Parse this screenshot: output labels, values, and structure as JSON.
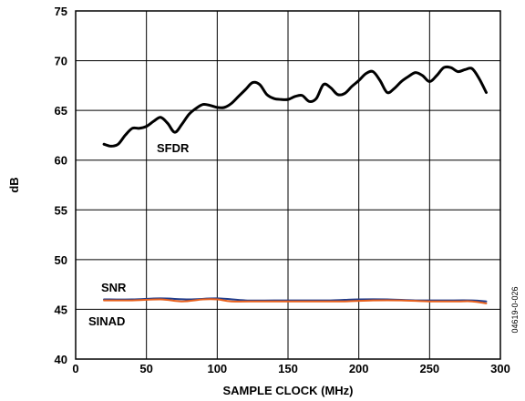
{
  "chart_data": {
    "type": "line",
    "xlabel": "SAMPLE CLOCK (MHz)",
    "ylabel": "dB",
    "xlim": [
      0,
      300
    ],
    "ylim": [
      40,
      75
    ],
    "xticks": [
      0,
      50,
      100,
      150,
      200,
      250,
      300
    ],
    "yticks": [
      40,
      45,
      50,
      55,
      60,
      65,
      70,
      75
    ],
    "grid": true,
    "figure_id": "04619-0-026",
    "series": [
      {
        "name": "SFDR",
        "color": "#000000",
        "x": [
          20,
          25,
          30,
          35,
          40,
          45,
          50,
          55,
          60,
          65,
          70,
          75,
          80,
          85,
          90,
          95,
          100,
          105,
          110,
          115,
          120,
          125,
          130,
          135,
          140,
          145,
          150,
          155,
          160,
          165,
          170,
          175,
          180,
          185,
          190,
          195,
          200,
          205,
          210,
          215,
          220,
          225,
          230,
          235,
          240,
          245,
          250,
          255,
          260,
          265,
          270,
          275,
          280,
          285,
          290
        ],
        "values": [
          61.6,
          61.4,
          61.6,
          62.5,
          63.2,
          63.2,
          63.4,
          63.9,
          64.3,
          63.7,
          62.8,
          63.6,
          64.6,
          65.2,
          65.6,
          65.5,
          65.3,
          65.3,
          65.7,
          66.4,
          67.1,
          67.8,
          67.6,
          66.6,
          66.2,
          66.1,
          66.1,
          66.4,
          66.5,
          65.9,
          66.2,
          67.6,
          67.3,
          66.6,
          66.7,
          67.4,
          68.0,
          68.7,
          68.9,
          68.0,
          66.8,
          67.2,
          67.9,
          68.4,
          68.8,
          68.5,
          67.9,
          68.5,
          69.3,
          69.3,
          68.9,
          69.1,
          69.2,
          68.2,
          66.8
        ]
      },
      {
        "name": "SNR",
        "color": "#1f3c8c",
        "x": [
          20,
          40,
          60,
          80,
          100,
          120,
          140,
          160,
          180,
          200,
          220,
          240,
          260,
          280,
          290
        ],
        "values": [
          46.0,
          46.0,
          46.1,
          46.0,
          46.1,
          45.9,
          45.9,
          45.9,
          45.9,
          46.0,
          46.0,
          45.9,
          45.9,
          45.9,
          45.8
        ]
      },
      {
        "name": "SINAD",
        "color": "#e8601c",
        "x": [
          20,
          40,
          60,
          75,
          90,
          100,
          110,
          130,
          150,
          170,
          190,
          210,
          230,
          250,
          270,
          280,
          290
        ],
        "values": [
          45.9,
          45.9,
          46.0,
          45.8,
          46.0,
          46.0,
          45.8,
          45.8,
          45.8,
          45.8,
          45.8,
          45.9,
          45.9,
          45.8,
          45.8,
          45.8,
          45.6
        ]
      }
    ]
  }
}
